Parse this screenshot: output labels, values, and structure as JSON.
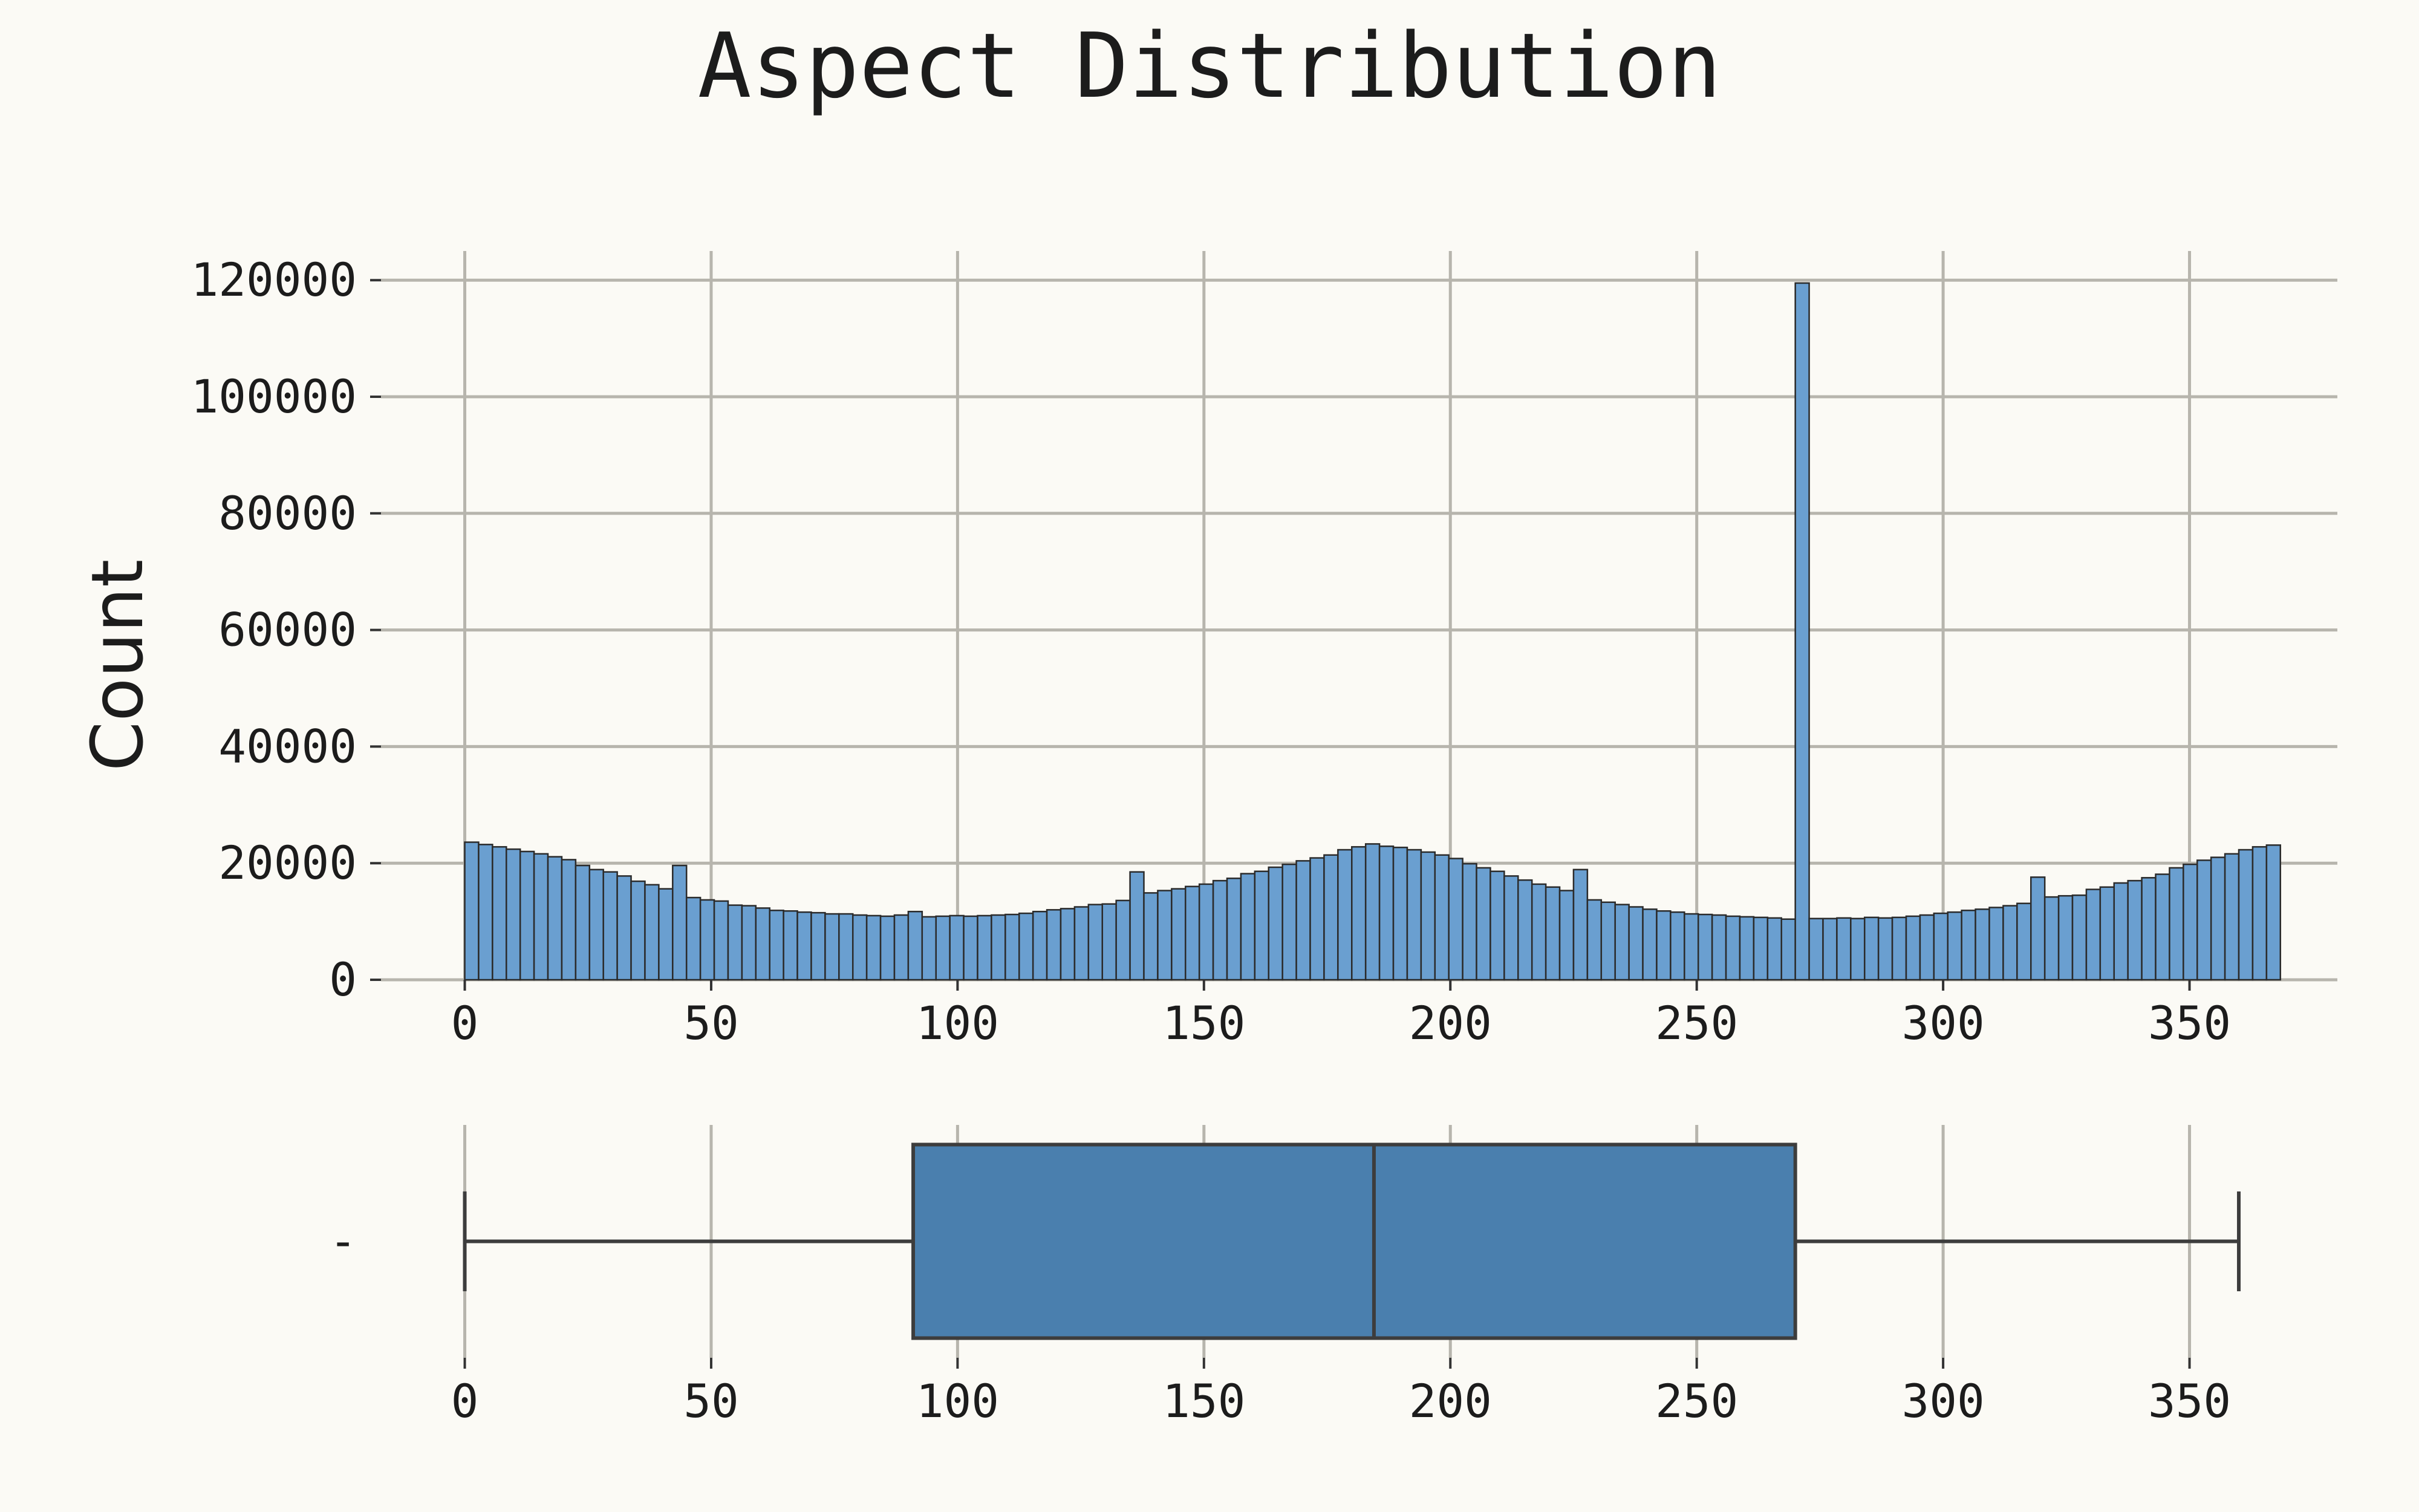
{
  "chart_data": [
    {
      "type": "bar",
      "title": "Aspect Distribution",
      "ylabel": "Count",
      "xlabel": "",
      "xlim": [
        -17,
        380
      ],
      "ylim": [
        0,
        125000
      ],
      "xticks": [
        0,
        50,
        100,
        150,
        200,
        250,
        300,
        350
      ],
      "yticks": [
        0,
        20000,
        40000,
        60000,
        80000,
        100000,
        120000
      ],
      "grid": true,
      "bin_width": 2.8125,
      "bin_start": 0,
      "values": [
        23600,
        23200,
        22800,
        22400,
        22000,
        21600,
        21100,
        20600,
        19600,
        18900,
        18500,
        17800,
        16900,
        16300,
        15600,
        19600,
        14100,
        13700,
        13500,
        12800,
        12700,
        12300,
        11900,
        11800,
        11600,
        11500,
        11300,
        11300,
        11100,
        11000,
        10900,
        11100,
        11700,
        10800,
        10900,
        11000,
        10900,
        11000,
        11100,
        11200,
        11400,
        11700,
        12000,
        12200,
        12500,
        12900,
        13000,
        13600,
        18500,
        14900,
        15300,
        15600,
        16000,
        16400,
        17000,
        17400,
        18200,
        18600,
        19300,
        19800,
        20400,
        20900,
        21400,
        22300,
        22800,
        23300,
        22900,
        22700,
        22300,
        21900,
        21400,
        20800,
        19900,
        19200,
        18600,
        17800,
        17100,
        16400,
        15900,
        15300,
        18900,
        13700,
        13300,
        12900,
        12500,
        12100,
        11800,
        11600,
        11300,
        11200,
        11100,
        10900,
        10800,
        10700,
        10600,
        10400,
        119500,
        10500,
        10500,
        10600,
        10500,
        10700,
        10600,
        10700,
        10900,
        11100,
        11400,
        11600,
        11900,
        12100,
        12400,
        12700,
        13100,
        17600,
        14200,
        14400,
        14500,
        15500,
        15900,
        16600,
        17000,
        17500,
        18100,
        19200,
        19800,
        20500,
        21000,
        21600,
        22300,
        22800,
        23100
      ]
    },
    {
      "type": "box",
      "xticks": [
        0,
        50,
        100,
        150,
        200,
        250,
        300,
        350
      ],
      "ytick_label": "-",
      "min": 0,
      "q1": 91,
      "median": 184.5,
      "q3": 270,
      "max": 360,
      "color": "#4a7fae"
    }
  ]
}
